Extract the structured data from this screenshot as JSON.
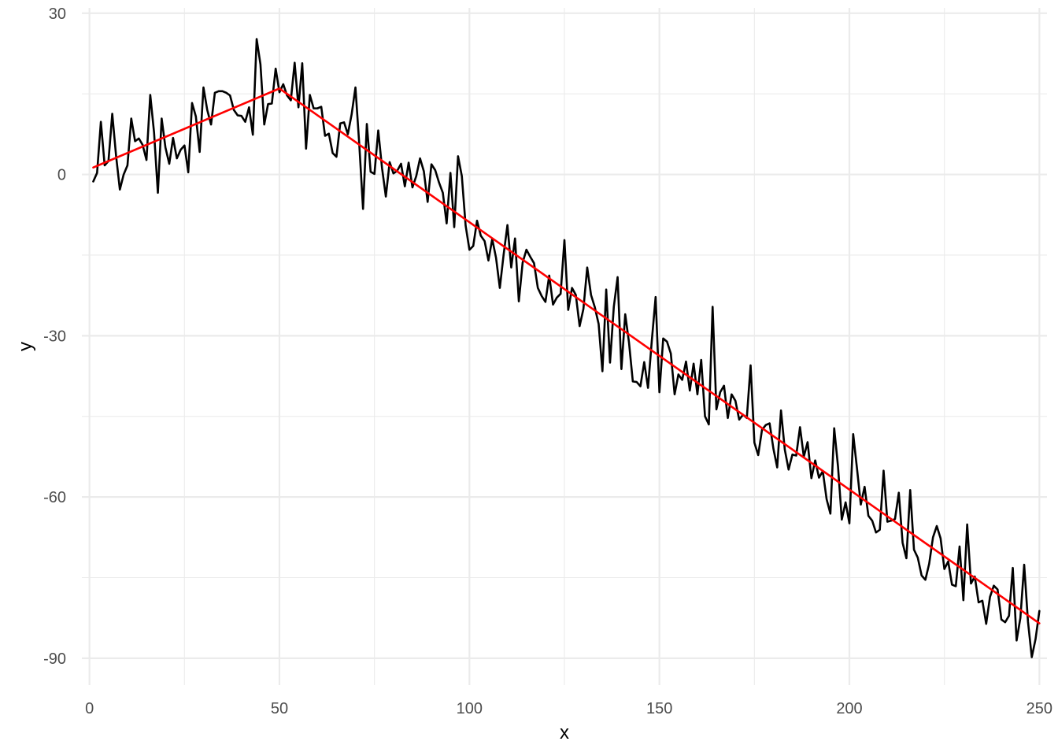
{
  "chart_data": {
    "type": "line",
    "title": "",
    "xlabel": "x",
    "ylabel": "y",
    "xlim": [
      -2,
      252
    ],
    "ylim": [
      -95,
      31
    ],
    "x_ticks": [
      0,
      50,
      100,
      150,
      200,
      250
    ],
    "x_tick_labels": [
      "0",
      "50",
      "100",
      "150",
      "200",
      "250"
    ],
    "y_ticks": [
      30,
      0,
      -30,
      -60,
      -90
    ],
    "y_tick_labels": [
      "30",
      "0",
      "-30",
      "-60",
      "-90"
    ],
    "grid": true,
    "legend": "none",
    "series": [
      {
        "color": "#000000",
        "x_start": 1,
        "x_step": 1,
        "values": [
          -1.3,
          0.3,
          9.8,
          1.7,
          2.5,
          11.3,
          3.5,
          -2.8,
          0,
          1.7,
          10.4,
          6.2,
          6.7,
          5.5,
          2.7,
          14.8,
          7.8,
          -3.4,
          10.4,
          5,
          2,
          6.8,
          3,
          4.6,
          5.4,
          0.4,
          13.3,
          10.8,
          4.2,
          16.2,
          12,
          9.3,
          15.2,
          15.5,
          15.5,
          15.2,
          14.7,
          12,
          11,
          10.9,
          9.8,
          12.5,
          7.4,
          25.2,
          20.5,
          9.3,
          13.1,
          13.2,
          19.7,
          15.3,
          16.8,
          14.7,
          13.8,
          20.8,
          12.5,
          20.7,
          4.8,
          14.8,
          12.3,
          12.3,
          12.6,
          7.2,
          7.6,
          4,
          3.3,
          9.5,
          9.7,
          7.5,
          11.2,
          16.2,
          5.7,
          -6.4,
          9.4,
          0.5,
          0.1,
          8.2,
          1.2,
          -4.1,
          2.3,
          0.2,
          0.7,
          2,
          -2.2,
          2.2,
          -2.4,
          -0.3,
          3,
          0.6,
          -5.1,
          1.9,
          0.8,
          -1.5,
          -3.4,
          -9.1,
          0.3,
          -9.8,
          3.4,
          -0.3,
          -9.5,
          -14,
          -13.3,
          -8.6,
          -11.4,
          -12.4,
          -16,
          -12,
          -15.5,
          -21.1,
          -14.9,
          -9.4,
          -17.3,
          -11.9,
          -23.6,
          -16.4,
          -14,
          -15.3,
          -16.5,
          -21.1,
          -22.6,
          -23.7,
          -18.8,
          -24.2,
          -22.9,
          -22.2,
          -12.2,
          -25.2,
          -21.1,
          -22.4,
          -28.2,
          -25,
          -17.3,
          -22.4,
          -24.7,
          -27.8,
          -36.6,
          -21.4,
          -35,
          -24.6,
          -19.1,
          -36.2,
          -26,
          -31.3,
          -38.5,
          -38.6,
          -39.4,
          -34.9,
          -39.7,
          -30.9,
          -22.8,
          -40.5,
          -30.5,
          -31.1,
          -33.3,
          -40.9,
          -37.2,
          -38.2,
          -34.8,
          -40.2,
          -35.2,
          -40.9,
          -34.5,
          -45,
          -46.5,
          -24.6,
          -43.7,
          -40.5,
          -39.3,
          -45.3,
          -40.9,
          -42.1,
          -45.6,
          -44.7,
          -45.3,
          -35.5,
          -49.9,
          -52.2,
          -47.5,
          -46.6,
          -46.3,
          -51,
          -54.5,
          -43.9,
          -51.2,
          -54.9,
          -52.1,
          -52.3,
          -47,
          -52.5,
          -49.8,
          -56.5,
          -53.2,
          -56.4,
          -55.2,
          -60.4,
          -63.1,
          -47.2,
          -54.3,
          -64.2,
          -61,
          -64.9,
          -48.3,
          -54.7,
          -61.4,
          -58.1,
          -63.5,
          -64.4,
          -66.6,
          -66.1,
          -55.1,
          -64.6,
          -64.4,
          -64.1,
          -59.2,
          -68.5,
          -71.4,
          -58.7,
          -69.8,
          -71.3,
          -74.6,
          -75.4,
          -72.4,
          -67.5,
          -65.4,
          -67.7,
          -73.4,
          -72,
          -76.3,
          -76.6,
          -69.2,
          -79.2,
          -65.1,
          -76.1,
          -74.8,
          -79.6,
          -79.3,
          -83.6,
          -78.6,
          -76.5,
          -77.2,
          -82.8,
          -83.3,
          -82.1,
          -73.2,
          -86.7,
          -82.5,
          -72.6,
          -83.2,
          -89.8,
          -86.4,
          -81.2
        ]
      },
      {
        "color": "#ff0000",
        "x": [
          1,
          50,
          250
        ],
        "y": [
          1.3,
          16.0,
          -83.5
        ]
      }
    ]
  }
}
